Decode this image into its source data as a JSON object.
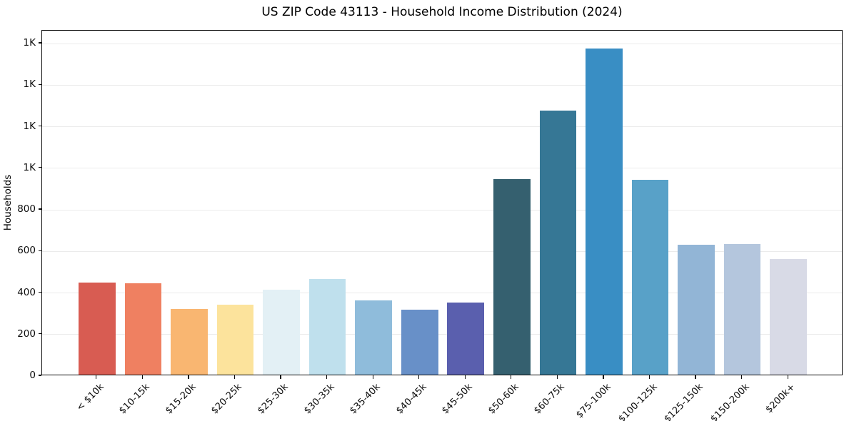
{
  "figure": {
    "title": "US ZIP Code 43113 - Household Income Distribution (2024)",
    "ylabel": "Households"
  },
  "chart_data": {
    "type": "bar",
    "title": "US ZIP Code 43113 - Household Income Distribution (2024)",
    "xlabel": "",
    "ylabel": "Households",
    "grid": true,
    "legend": false,
    "ylim": [
      0,
      1662
    ],
    "categories": [
      "< $10k",
      "$10-15k",
      "$15-20k",
      "$20-25k",
      "$25-30k",
      "$30-35k",
      "$35-40k",
      "$40-45k",
      "$45-50k",
      "$50-60k",
      "$60-75k",
      "$75-100k",
      "$100-125k",
      "$125-150k",
      "$150-200k",
      "$200k+"
    ],
    "values": [
      444,
      440,
      315,
      338,
      410,
      461,
      358,
      312,
      346,
      940,
      1272,
      1570,
      936,
      624,
      629,
      558
    ],
    "bar_colors": [
      "#d85c52",
      "#ef8061",
      "#f9b671",
      "#fce39c",
      "#e3f0f5",
      "#bfe0ed",
      "#8fbcdb",
      "#6890c8",
      "#5a5fae",
      "#35606f",
      "#367795",
      "#398ec4",
      "#58a1c8",
      "#92b5d6",
      "#b4c6dd",
      "#d8dae6"
    ],
    "yticks": [
      {
        "value": 0,
        "label": "0"
      },
      {
        "value": 200,
        "label": "200"
      },
      {
        "value": 400,
        "label": "400"
      },
      {
        "value": 600,
        "label": "600"
      },
      {
        "value": 800,
        "label": "800"
      },
      {
        "value": 1000,
        "label": "1K"
      },
      {
        "value": 1200,
        "label": "1K"
      },
      {
        "value": 1400,
        "label": "1K"
      },
      {
        "value": 1600,
        "label": "1K"
      }
    ],
    "axis_color": "#0d0d0d",
    "grid_color": "#ebebeb",
    "background_color": "#ffffff"
  }
}
